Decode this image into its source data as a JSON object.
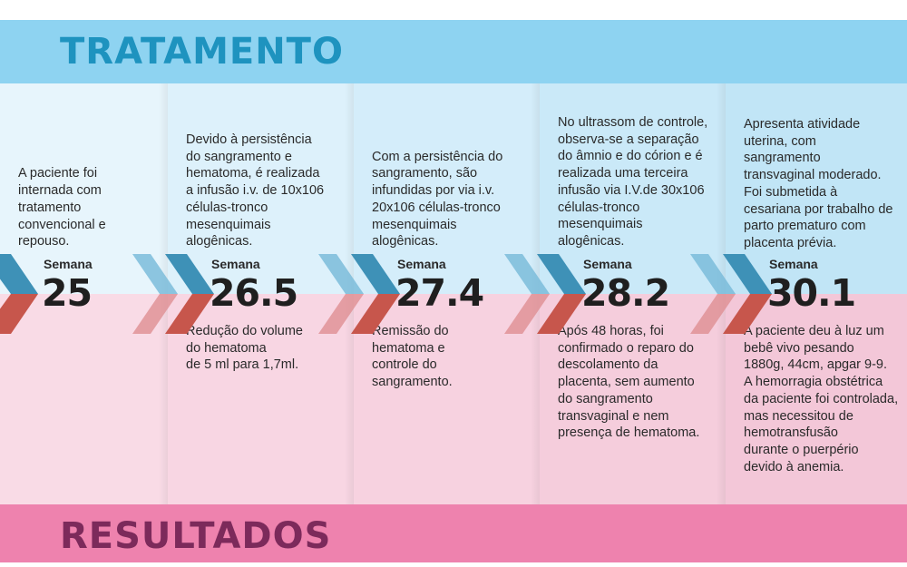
{
  "header": {
    "title": "TRATAMENTO"
  },
  "footer": {
    "title": "RESULTADOS"
  },
  "colors": {
    "treatment": "#8ed3f1",
    "results": "#ee82ae",
    "chevron_blue": "#3e91b7",
    "chevron_red": "#c7564c"
  },
  "week_label": "Semana",
  "steps": [
    {
      "week": "25",
      "treatment": "A paciente foi\ninternada com\ntratamento\nconvencional e\nrepouso.",
      "result": ""
    },
    {
      "week": "26.5",
      "treatment": "Devido à persistência\ndo sangramento e\nhematoma, é realizada\na infusão i.v. de 10x106\ncélulas-tronco\nmesenquimais\nalogênicas.",
      "result": "Redução do volume\ndo hematoma\nde 5 ml para 1,7ml."
    },
    {
      "week": "27.4",
      "treatment": "Com a persistência do\nsangramento, são\ninfundidas por via i.v.\n20x106 células-tronco\nmesenquimais\nalogênicas.",
      "result": "Remissão do\nhematoma e\ncontrole do\nsangramento."
    },
    {
      "week": "28.2",
      "treatment": "No ultrassom de controle,\nobserva-se a separação\ndo âmnio e do córion e é\nrealizada uma terceira\ninfusão via I.V.de 30x106\ncélulas-tronco\nmesenquimais\nalogênicas.",
      "result": "Após 48 horas, foi\nconfirmado o reparo do\ndescolamento da\nplacenta, sem aumento\ndo sangramento\ntransvaginal e nem\npresença de hematoma."
    },
    {
      "week": "30.1",
      "treatment": "Apresenta atividade\nuterina, com\nsangramento\ntransvaginal moderado.\nFoi submetida à\ncesariana por trabalho de\nparto prematuro com\nplacenta prévia.",
      "result": "A paciente deu à luz um\nbebê vivo pesando\n1880g, 44cm, apgar 9-9.\nA hemorragia obstétrica\nda paciente foi controlada,\nmas necessitou de\nhemotransfusão\ndurante o puerpério\ndevido à anemia."
    }
  ]
}
